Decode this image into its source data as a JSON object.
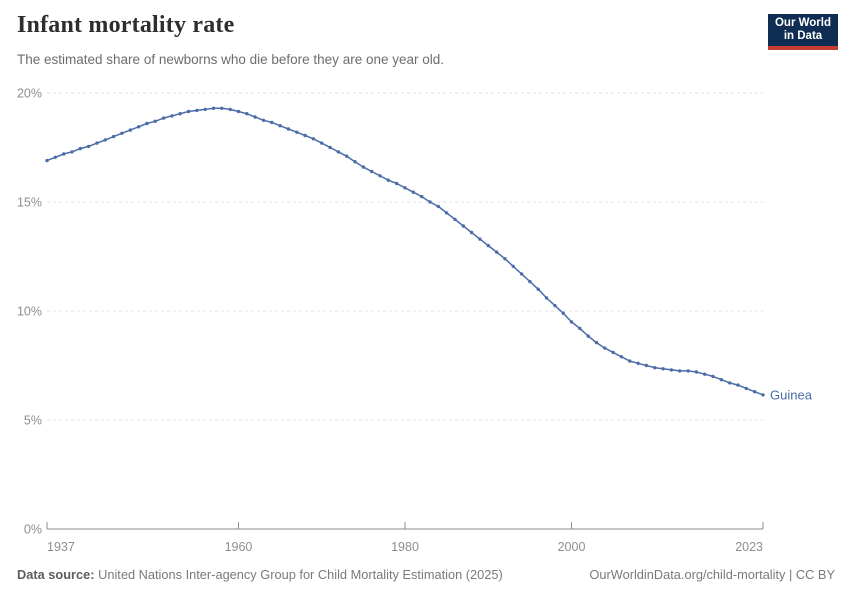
{
  "header": {
    "title": "Infant mortality rate",
    "subtitle": "The estimated share of newborns who die before they are one year old."
  },
  "logo": {
    "line1": "Our World",
    "line2": "in Data"
  },
  "chart_data": {
    "type": "line",
    "title": "Infant mortality rate",
    "series": [
      {
        "name": "Guinea",
        "x_range": [
          1937,
          2023
        ],
        "x_step": 1,
        "values": [
          16.9,
          17.05,
          17.2,
          17.3,
          17.45,
          17.55,
          17.7,
          17.85,
          18.0,
          18.15,
          18.3,
          18.45,
          18.6,
          18.7,
          18.85,
          18.95,
          19.05,
          19.15,
          19.2,
          19.25,
          19.3,
          19.3,
          19.25,
          19.15,
          19.05,
          18.9,
          18.75,
          18.65,
          18.5,
          18.35,
          18.2,
          18.05,
          17.9,
          17.7,
          17.5,
          17.3,
          17.1,
          16.85,
          16.6,
          16.4,
          16.2,
          16.0,
          15.85,
          15.65,
          15.45,
          15.25,
          15.0,
          14.8,
          14.5,
          14.2,
          13.9,
          13.6,
          13.3,
          13.0,
          12.7,
          12.4,
          12.05,
          11.7,
          11.35,
          11.0,
          10.6,
          10.25,
          9.9,
          9.5,
          9.2,
          8.85,
          8.55,
          8.3,
          8.1,
          7.9,
          7.7,
          7.6,
          7.5,
          7.4,
          7.35,
          7.3,
          7.25,
          7.25,
          7.2,
          7.1,
          7.0,
          6.85,
          6.7,
          6.6,
          6.45,
          6.3,
          6.15
        ]
      }
    ],
    "unit": "%",
    "ylim": [
      0,
      20
    ],
    "yticks": [
      0,
      5,
      10,
      15,
      20
    ],
    "ytick_labels": [
      "0%",
      "5%",
      "10%",
      "15%",
      "20%"
    ],
    "xticks": [
      1937,
      1960,
      1980,
      2000,
      2023
    ],
    "xtick_labels": [
      "1937",
      "1960",
      "1980",
      "2000",
      "2023"
    ],
    "grid": "horizontal-dashed",
    "legend": "inline-end-label",
    "markers": "point-per-year"
  },
  "colors": {
    "line": "#4C6CA8",
    "logo_bg": "#0F2D52",
    "logo_red": "#C53D33",
    "grid": "#E0E0E0",
    "axis": "#8E8E8E"
  },
  "footer": {
    "source_label": "Data source:",
    "source_text": " United Nations Inter-agency Group for Child Mortality Estimation (2025)",
    "right_text": "OurWorldinData.org/child-mortality | CC BY"
  }
}
